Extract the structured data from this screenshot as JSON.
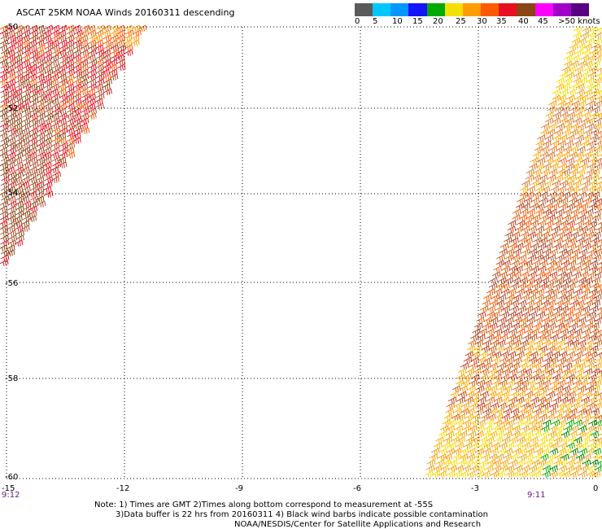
{
  "title": "ASCAT 25KM NOAA Winds 20160311 descending",
  "scale": {
    "colors": [
      "#5a5a5a",
      "#00c8ff",
      "#0096ff",
      "#1414ff",
      "#00aa00",
      "#f4e000",
      "#ff9c00",
      "#ff5a00",
      "#e81020",
      "#8b4513",
      "#ff00ff",
      "#a000c8",
      "#5a0082"
    ],
    "labels": [
      "0",
      "5",
      "10",
      "15",
      "20",
      "25",
      "30",
      "35",
      "40",
      "45",
      ">50 knots"
    ]
  },
  "map": {
    "lat_labels": [
      "-50",
      "-52",
      "-54",
      "-56",
      "-58",
      "-60"
    ],
    "lon_labels": [
      "-15",
      "-12",
      "-9",
      "-6",
      "-3",
      "0"
    ],
    "lon_values": [
      -15,
      -12,
      -9,
      -6,
      -3,
      0
    ],
    "lat_values": [
      -50,
      -52,
      -54,
      -56,
      -58,
      -60
    ],
    "time_left": "9:12",
    "time_right": "9:11"
  },
  "notes": {
    "line1": "Note: 1) Times are GMT 2)Times along bottom correspond to measurement at -55S",
    "line2": "3)Data buffer is 22 hrs from 20160311 4) Black wind barbs indicate possible contamination",
    "line3": "NOAA/NESDIS/Center for Satellite Applications and Research"
  }
}
